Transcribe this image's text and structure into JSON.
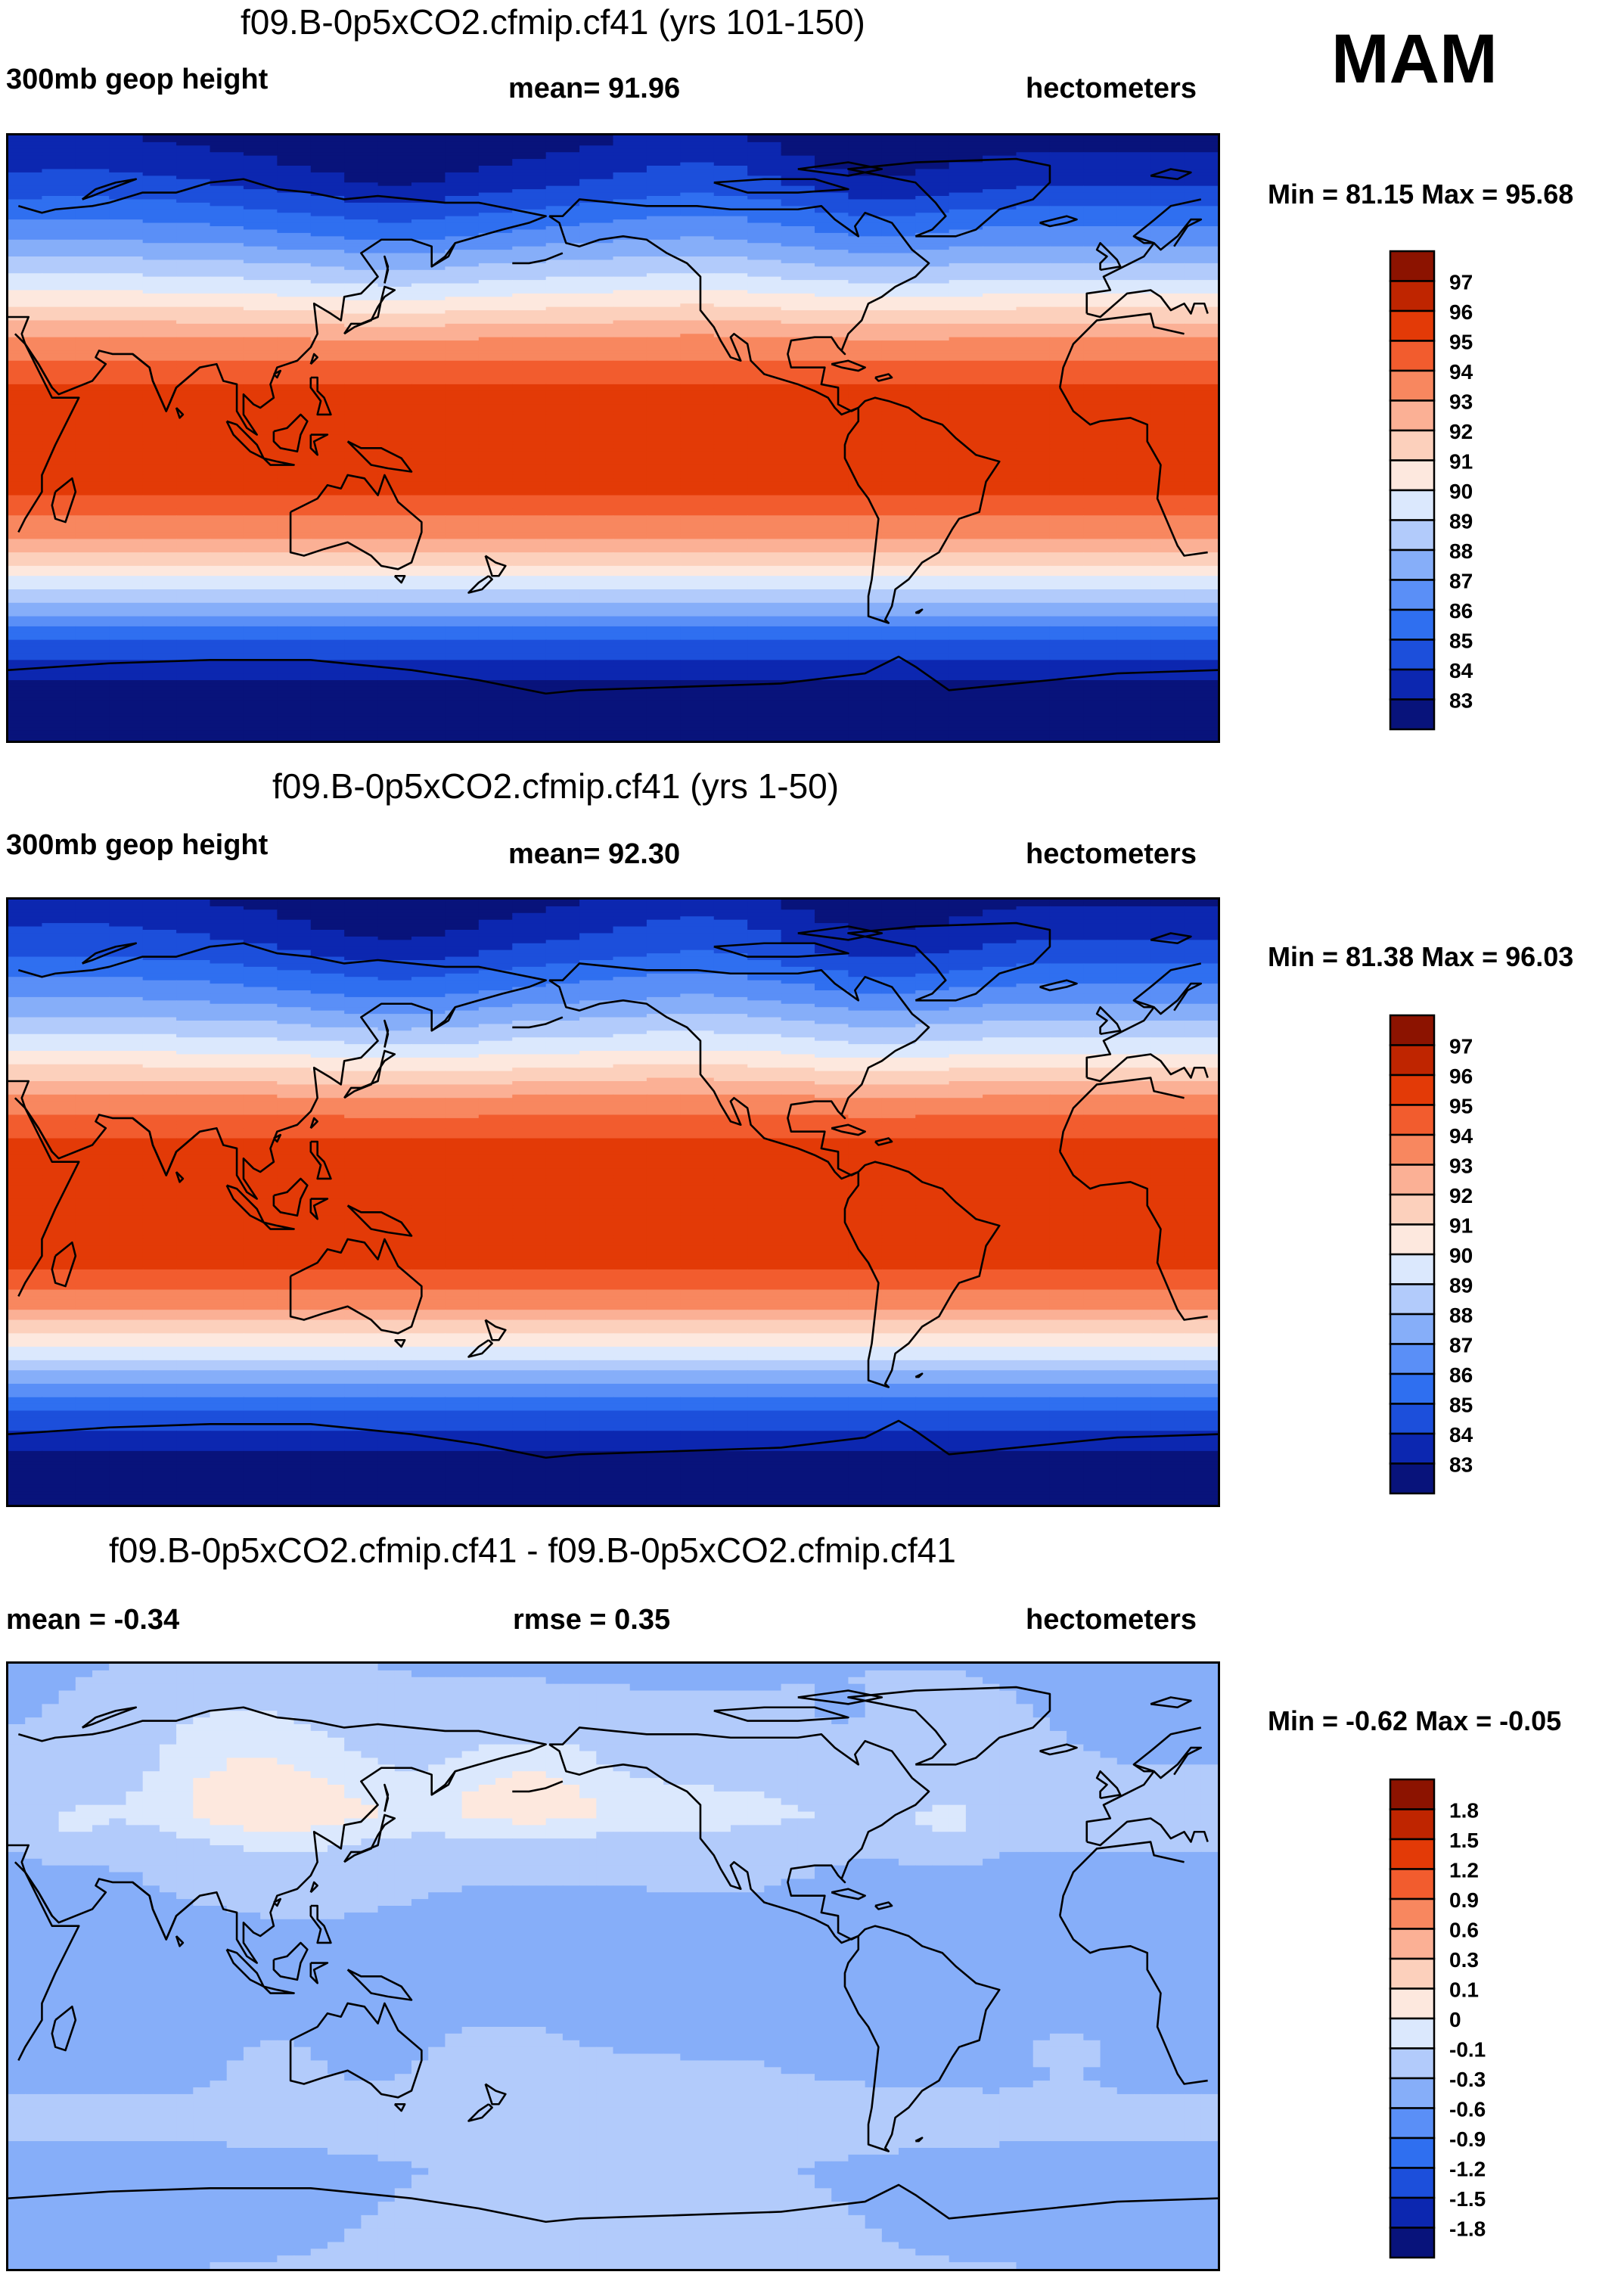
{
  "season": "MAM",
  "colors": {
    "abs_palette": [
      "#08137b",
      "#0c27b0",
      "#1c4fdb",
      "#2f6ff0",
      "#5a8ff7",
      "#86aef9",
      "#b2cbfb",
      "#dbe8fd",
      "#fde8de",
      "#fcd0bc",
      "#fbb095",
      "#f8875f",
      "#f25c2e",
      "#e33a07",
      "#bf2500",
      "#8c1300"
    ],
    "diff_palette": [
      "#08137b",
      "#0c27b0",
      "#1c4fdb",
      "#2f6ff0",
      "#5a8ff7",
      "#86aef9",
      "#b2cbfb",
      "#dbe8fd",
      "#fde8de",
      "#fcd0bc",
      "#fbb095",
      "#f8875f",
      "#f25c2e",
      "#e33a07",
      "#bf2500",
      "#8c1300"
    ]
  },
  "panels": [
    {
      "title": "f09.B-0p5xCO2.cfmip.cf41 (yrs 101-150)",
      "left_label": "300mb geop height",
      "center_label": "mean=  91.96",
      "units": "hectometers",
      "minmax": "Min =  81.15 Max =  95.68"
    },
    {
      "title": "f09.B-0p5xCO2.cfmip.cf41 (yrs 1-50)",
      "left_label": "300mb geop height",
      "center_label": "mean=  92.30",
      "units": "hectometers",
      "minmax": "Min =  81.38 Max =  96.03"
    },
    {
      "title": "f09.B-0p5xCO2.cfmip.cf41 - f09.B-0p5xCO2.cfmip.cf41",
      "left_label": "mean =  -0.34",
      "center_label": "rmse =   0.35",
      "units": "hectometers",
      "minmax": "Min =  -0.62 Max =  -0.05"
    }
  ],
  "chart_data": [
    {
      "type": "heatmap",
      "title": "f09.B-0p5xCO2.cfmip.cf41 (yrs 101-150)",
      "variable": "300mb geop height",
      "units": "hectometers",
      "mean": 91.96,
      "min": 81.15,
      "max": 95.68,
      "colorbar_levels": [
        "97",
        "96",
        "95",
        "94",
        "93",
        "92",
        "91",
        "90",
        "89",
        "88",
        "87",
        "86",
        "85",
        "84",
        "83"
      ],
      "zonal_profile": [
        {
          "lat": 90,
          "value": 82.5
        },
        {
          "lat": 75,
          "value": 84.0
        },
        {
          "lat": 60,
          "value": 86.5
        },
        {
          "lat": 45,
          "value": 89.5
        },
        {
          "lat": 30,
          "value": 93.0
        },
        {
          "lat": 15,
          "value": 95.2
        },
        {
          "lat": 0,
          "value": 95.5
        },
        {
          "lat": -15,
          "value": 95.3
        },
        {
          "lat": -30,
          "value": 93.0
        },
        {
          "lat": -45,
          "value": 89.0
        },
        {
          "lat": -60,
          "value": 85.0
        },
        {
          "lat": -75,
          "value": 82.5
        },
        {
          "lat": -90,
          "value": 81.5
        }
      ]
    },
    {
      "type": "heatmap",
      "title": "f09.B-0p5xCO2.cfmip.cf41 (yrs 1-50)",
      "variable": "300mb geop height",
      "units": "hectometers",
      "mean": 92.3,
      "min": 81.38,
      "max": 96.03,
      "colorbar_levels": [
        "97",
        "96",
        "95",
        "94",
        "93",
        "92",
        "91",
        "90",
        "89",
        "88",
        "87",
        "86",
        "85",
        "84",
        "83"
      ],
      "zonal_profile": [
        {
          "lat": 90,
          "value": 82.8
        },
        {
          "lat": 75,
          "value": 84.3
        },
        {
          "lat": 60,
          "value": 86.8
        },
        {
          "lat": 45,
          "value": 89.8
        },
        {
          "lat": 30,
          "value": 93.4
        },
        {
          "lat": 15,
          "value": 95.6
        },
        {
          "lat": 0,
          "value": 95.9
        },
        {
          "lat": -15,
          "value": 95.7
        },
        {
          "lat": -30,
          "value": 93.4
        },
        {
          "lat": -45,
          "value": 89.4
        },
        {
          "lat": -60,
          "value": 85.4
        },
        {
          "lat": -75,
          "value": 82.8
        },
        {
          "lat": -90,
          "value": 81.8
        }
      ]
    },
    {
      "type": "heatmap",
      "title": "f09.B-0p5xCO2.cfmip.cf41 - f09.B-0p5xCO2.cfmip.cf41",
      "units": "hectometers",
      "mean": -0.34,
      "rmse": 0.35,
      "min": -0.62,
      "max": -0.05,
      "colorbar_levels": [
        "1.8",
        "1.5",
        "1.2",
        "0.9",
        "0.6",
        "0.3",
        "0.1",
        "0",
        "-0.1",
        "-0.3",
        "-0.6",
        "-0.9",
        "-1.2",
        "-1.5",
        "-1.8"
      ],
      "zonal_profile": [
        {
          "lat": 90,
          "value": -0.35
        },
        {
          "lat": 60,
          "value": -0.3
        },
        {
          "lat": 45,
          "value": -0.2
        },
        {
          "lat": 30,
          "value": -0.35
        },
        {
          "lat": 0,
          "value": -0.4
        },
        {
          "lat": -30,
          "value": -0.35
        },
        {
          "lat": -45,
          "value": -0.25
        },
        {
          "lat": -60,
          "value": -0.35
        },
        {
          "lat": -90,
          "value": -0.3
        }
      ]
    }
  ]
}
